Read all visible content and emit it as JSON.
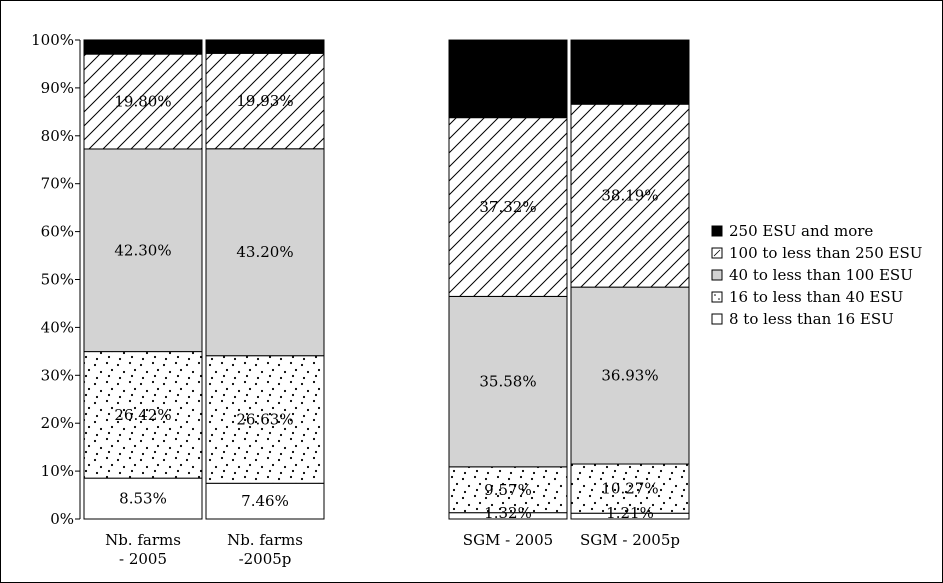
{
  "chart_data": {
    "type": "bar",
    "stacked": true,
    "percent_stacked": true,
    "categories": [
      [
        "Nb. farms",
        "- 2005"
      ],
      [
        "Nb. farms",
        "-2005p"
      ],
      [
        "SGM - 2005"
      ],
      [
        "SGM - 2005p"
      ]
    ],
    "series": [
      {
        "name": "8 to less than 16 ESU",
        "pattern": "none",
        "values": [
          8.53,
          7.46,
          1.32,
          1.21
        ],
        "labels": [
          "8.53%",
          "7.46%",
          "1.32%",
          "1.21%"
        ]
      },
      {
        "name": "16 to less than 40 ESU",
        "pattern": "dots",
        "values": [
          26.42,
          26.63,
          9.57,
          10.27
        ],
        "labels": [
          "26.42%",
          "26.63%",
          "9.57%",
          "10.27%"
        ]
      },
      {
        "name": "40 to less than 100 ESU",
        "pattern": "gray",
        "values": [
          42.3,
          43.2,
          35.58,
          36.93
        ],
        "labels": [
          "42.30%",
          "43.20%",
          "35.58%",
          "36.93%"
        ]
      },
      {
        "name": "100 to less than 250 ESU",
        "pattern": "hatch",
        "values": [
          19.8,
          19.93,
          37.32,
          38.19
        ],
        "labels": [
          "19.80%",
          "19.93%",
          "37.32%",
          "38.19%"
        ]
      },
      {
        "name": "250 ESU and more",
        "pattern": "black",
        "values": [
          2.96,
          2.79,
          16.2,
          13.39
        ],
        "labels": [
          "2.96%",
          "2.79%",
          "16.20%",
          "13.39%"
        ]
      }
    ],
    "yticks": [
      "0%",
      "10%",
      "20%",
      "30%",
      "40%",
      "50%",
      "60%",
      "70%",
      "80%",
      "90%",
      "100%"
    ],
    "ylim": [
      0,
      100
    ],
    "title": "",
    "xlabel": "",
    "ylabel": "",
    "grid": false,
    "legend_position": "right",
    "colors": {
      "gray": "#d3d3d3",
      "black": "#000000",
      "white": "#ffffff",
      "outline": "#000000"
    }
  }
}
